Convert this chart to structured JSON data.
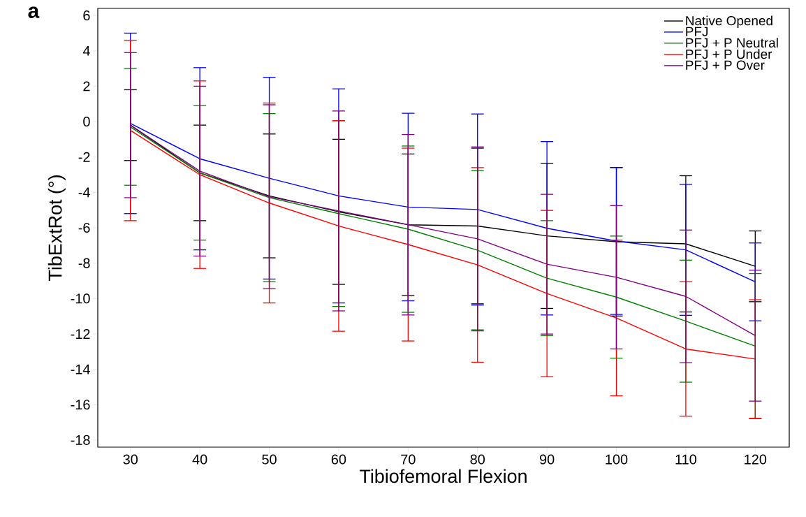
{
  "chart_data": {
    "type": "line",
    "title": "a",
    "xlabel": "Tibiofemoral Flexion",
    "ylabel": "TibExtRot (°)",
    "x": [
      30,
      40,
      50,
      60,
      70,
      80,
      90,
      100,
      110,
      120
    ],
    "series": [
      {
        "name": "Native Opened",
        "color": "#000000",
        "values": [
          -0.2,
          -2.9,
          -4.2,
          -5.1,
          -5.83,
          -5.9,
          -6.46,
          -6.79,
          -6.91,
          -8.18
        ],
        "errors": [
          2.0,
          2.7,
          3.5,
          4.1,
          4.0,
          4.4,
          4.1,
          4.2,
          3.85,
          2.0
        ]
      },
      {
        "name": "PFJ",
        "color": "#0000ff",
        "values": [
          -0.1,
          -2.1,
          -3.2,
          -4.2,
          -4.83,
          -4.97,
          -6.03,
          -6.75,
          -7.25,
          -9.06
        ],
        "errors": [
          5.1,
          5.15,
          5.7,
          6.05,
          5.3,
          5.4,
          4.9,
          4.15,
          3.7,
          2.2
        ]
      },
      {
        "name": "PFJ + P Neutral",
        "color": "#008000",
        "values": [
          -0.3,
          -2.9,
          -4.3,
          -5.2,
          -6.08,
          -7.27,
          -8.85,
          -9.92,
          -11.28,
          -12.69
        ],
        "errors": [
          3.3,
          3.8,
          4.75,
          5.25,
          4.7,
          4.5,
          3.25,
          3.45,
          3.45,
          4.1
        ]
      },
      {
        "name": "PFJ + P Under",
        "color": "#ff0000",
        "values": [
          -0.5,
          -3.0,
          -4.6,
          -5.9,
          -6.95,
          -8.1,
          -9.72,
          -11.1,
          -12.85,
          -13.42
        ],
        "errors": [
          5.1,
          5.3,
          5.65,
          5.95,
          5.45,
          5.5,
          4.7,
          4.4,
          3.8,
          3.35
        ]
      },
      {
        "name": "PFJ + P Over",
        "color": "#800080",
        "values": [
          -0.2,
          -2.8,
          -4.25,
          -5.05,
          -5.83,
          -6.63,
          -8.06,
          -8.8,
          -9.88,
          -12.1
        ],
        "errors": [
          4.1,
          4.8,
          5.2,
          5.65,
          5.1,
          5.2,
          3.95,
          4.05,
          3.75,
          3.7
        ]
      }
    ],
    "xlim": [
      25.3,
      124.9
    ],
    "ylim": [
      -18.4,
      6.4
    ],
    "xticks": [
      30,
      40,
      50,
      60,
      70,
      80,
      90,
      100,
      110,
      120
    ],
    "yticks": [
      -18,
      -16,
      -14,
      -12,
      -10,
      -8,
      -6,
      -4,
      -2,
      0,
      2,
      4,
      6
    ],
    "legend": "top right",
    "marker": "none",
    "line_style": "solid",
    "grid": false
  }
}
